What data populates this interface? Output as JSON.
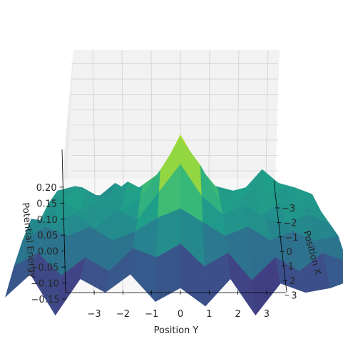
{
  "chart_data": {
    "type": "surface",
    "colormap": "viridis",
    "grid": true,
    "xlabel": "Position Y",
    "ylabel": "Position X",
    "zlabel": "Potential Energy",
    "xlim": [
      -3.5,
      3.5
    ],
    "ylim": [
      -3.5,
      3.5
    ],
    "zlim": [
      -0.15,
      0.22
    ],
    "x_ticks": [
      -3,
      -2,
      -1,
      0,
      1,
      2,
      3
    ],
    "x_tick_labels": [
      "−3",
      "−2",
      "−1",
      "0",
      "1",
      "2",
      "3"
    ],
    "y_ticks": [
      -3,
      -2,
      -1,
      0,
      1,
      2,
      3
    ],
    "y_tick_labels": [
      "−3",
      "−2",
      "−1",
      "0",
      "1",
      "2",
      "3"
    ],
    "z_ticks": [
      -0.15,
      -0.1,
      -0.05,
      0.0,
      0.05,
      0.1,
      0.15,
      0.2
    ],
    "z_tick_labels": [
      "−0.15",
      "−0.10",
      "−0.05",
      "0.00",
      "0.05",
      "0.10",
      "0.15",
      "0.20"
    ],
    "grid_y": [
      -3.5,
      -3,
      -2.5,
      -2,
      -1.5,
      -1,
      -0.5,
      0,
      0.5,
      1,
      1.5,
      2,
      2.5,
      3,
      3.5
    ],
    "grid_x": [
      -3.5,
      -2.5,
      -1.5,
      -0.5,
      0.5,
      1.5,
      2.5,
      3.5
    ],
    "z": [
      [
        0.04,
        0.05,
        0.03,
        0.06,
        0.04,
        0.05,
        0.07,
        0.09,
        0.06,
        0.05,
        0.03,
        0.05,
        0.09,
        0.06,
        0.05
      ],
      [
        0.06,
        0.07,
        0.05,
        0.05,
        0.08,
        0.06,
        0.08,
        0.14,
        0.09,
        0.07,
        0.06,
        0.07,
        0.05,
        0.07,
        0.06
      ],
      [
        0.05,
        0.06,
        0.08,
        0.04,
        0.06,
        0.09,
        0.12,
        0.2,
        0.13,
        0.08,
        0.05,
        0.09,
        0.06,
        0.05,
        0.07
      ],
      [
        0.03,
        0.08,
        0.05,
        0.07,
        0.05,
        0.08,
        0.14,
        0.21,
        0.15,
        0.07,
        0.06,
        0.04,
        0.07,
        0.06,
        0.05
      ],
      [
        0.05,
        0.04,
        0.06,
        0.03,
        0.07,
        0.05,
        0.11,
        0.17,
        0.1,
        0.06,
        0.08,
        0.05,
        0.04,
        0.06,
        0.04
      ],
      [
        0.02,
        0.05,
        0.03,
        0.05,
        0.02,
        0.04,
        0.07,
        0.09,
        0.06,
        0.03,
        0.05,
        0.02,
        0.04,
        0.02,
        0.03
      ],
      [
        -0.02,
        0.01,
        -0.04,
        0.0,
        -0.03,
        0.02,
        0.0,
        0.03,
        -0.02,
        0.01,
        -0.05,
        0.0,
        -0.03,
        0.01,
        -0.01
      ],
      [
        -0.07,
        -0.02,
        -0.11,
        -0.03,
        -0.06,
        -0.02,
        -0.08,
        -0.05,
        -0.09,
        -0.03,
        -0.11,
        -0.04,
        -0.06,
        -0.05,
        -0.03
      ]
    ]
  }
}
